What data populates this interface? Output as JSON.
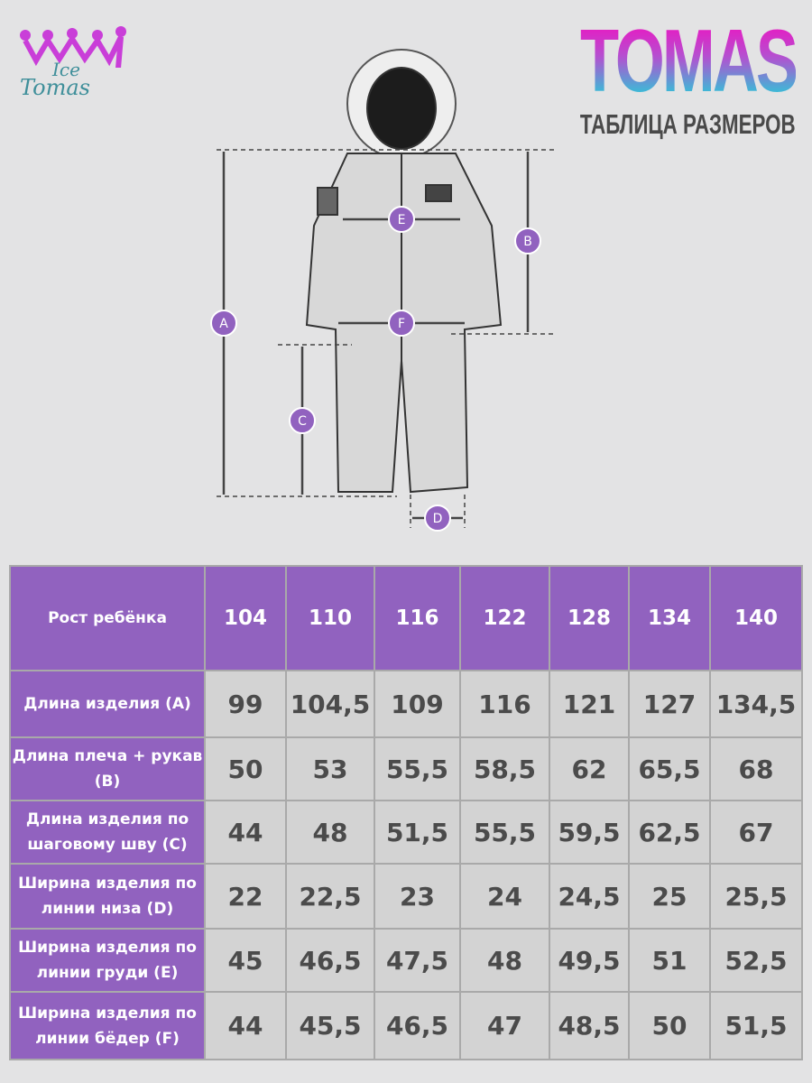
{
  "logo": {
    "line1": "Ice",
    "line2": "Tomas"
  },
  "brand": {
    "title": "TOMAS",
    "subtitle": "ТАБЛИЦА РАЗМЕРОВ"
  },
  "diagram": {
    "labels": [
      "A",
      "B",
      "C",
      "D",
      "E",
      "F"
    ],
    "accent": "#9162bf"
  },
  "table": {
    "header_label": "Рост ребёнка",
    "sizes": [
      "104",
      "110",
      "116",
      "122",
      "128",
      "134",
      "140"
    ],
    "rows": [
      {
        "label": "Длина изделия (A)",
        "values": [
          "99",
          "104,5",
          "109",
          "116",
          "121",
          "127",
          "134,5"
        ]
      },
      {
        "label": "Длина плеча + рукав (B)",
        "values": [
          "50",
          "53",
          "55,5",
          "58,5",
          "62",
          "65,5",
          "68"
        ]
      },
      {
        "label": "Длина изделия по шаговому шву (C)",
        "values": [
          "44",
          "48",
          "51,5",
          "55,5",
          "59,5",
          "62,5",
          "67"
        ]
      },
      {
        "label": "Ширина изделия по линии низа (D)",
        "values": [
          "22",
          "22,5",
          "23",
          "24",
          "24,5",
          "25",
          "25,5"
        ]
      },
      {
        "label": "Ширина изделия по линии груди (E)",
        "values": [
          "45",
          "46,5",
          "47,5",
          "48",
          "49,5",
          "51",
          "52,5"
        ]
      },
      {
        "label": "Ширина изделия по линии бёдер (F)",
        "values": [
          "44",
          "45,5",
          "46,5",
          "47",
          "48,5",
          "50",
          "51,5"
        ]
      }
    ]
  }
}
